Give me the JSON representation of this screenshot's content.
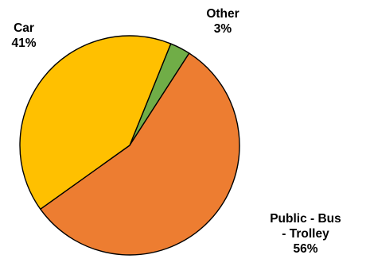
{
  "chart_data": {
    "type": "pie",
    "slices": [
      {
        "name": "Other",
        "value": 3,
        "label_lines": [
          "Other",
          "3%"
        ],
        "color": "#70AD47"
      },
      {
        "name": "Public - Bus - Trolley",
        "value": 56,
        "label_lines": [
          "Public - Bus",
          "- Trolley",
          "56%"
        ],
        "color": "#ED7D31"
      },
      {
        "name": "Car",
        "value": 41,
        "label_lines": [
          "Car",
          "41%"
        ],
        "color": "#FFC000"
      }
    ],
    "start_angle_deg": 22,
    "direction": "clockwise",
    "legend": "none",
    "title": ""
  }
}
